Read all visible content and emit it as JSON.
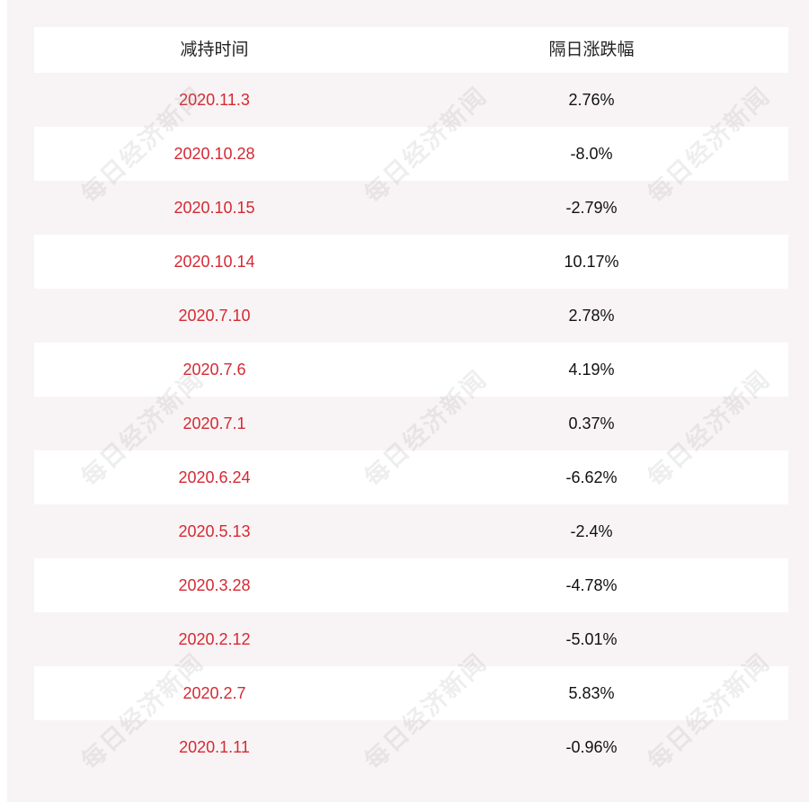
{
  "table": {
    "headers": {
      "date": "减持时间",
      "change": "隔日涨跌幅"
    },
    "rows": [
      {
        "date": "2020.11.3",
        "change": "2.76%"
      },
      {
        "date": "2020.10.28",
        "change": "-8.0%"
      },
      {
        "date": "2020.10.15",
        "change": "-2.79%"
      },
      {
        "date": "2020.10.14",
        "change": "10.17%"
      },
      {
        "date": "2020.7.10",
        "change": "2.78%"
      },
      {
        "date": "2020.7.6",
        "change": "4.19%"
      },
      {
        "date": "2020.7.1",
        "change": "0.37%"
      },
      {
        "date": "2020.6.24",
        "change": "-6.62%"
      },
      {
        "date": "2020.5.13",
        "change": "-2.4%"
      },
      {
        "date": "2020.3.28",
        "change": "-4.78%"
      },
      {
        "date": "2020.2.12",
        "change": "-5.01%"
      },
      {
        "date": "2020.2.7",
        "change": "5.83%"
      },
      {
        "date": "2020.1.11",
        "change": "-0.96%"
      }
    ]
  },
  "watermark": {
    "text": "每日经济新闻"
  },
  "colors": {
    "date_text": "#d42a34",
    "value_text": "#111111",
    "panel_bg": "#f8f4f5"
  }
}
